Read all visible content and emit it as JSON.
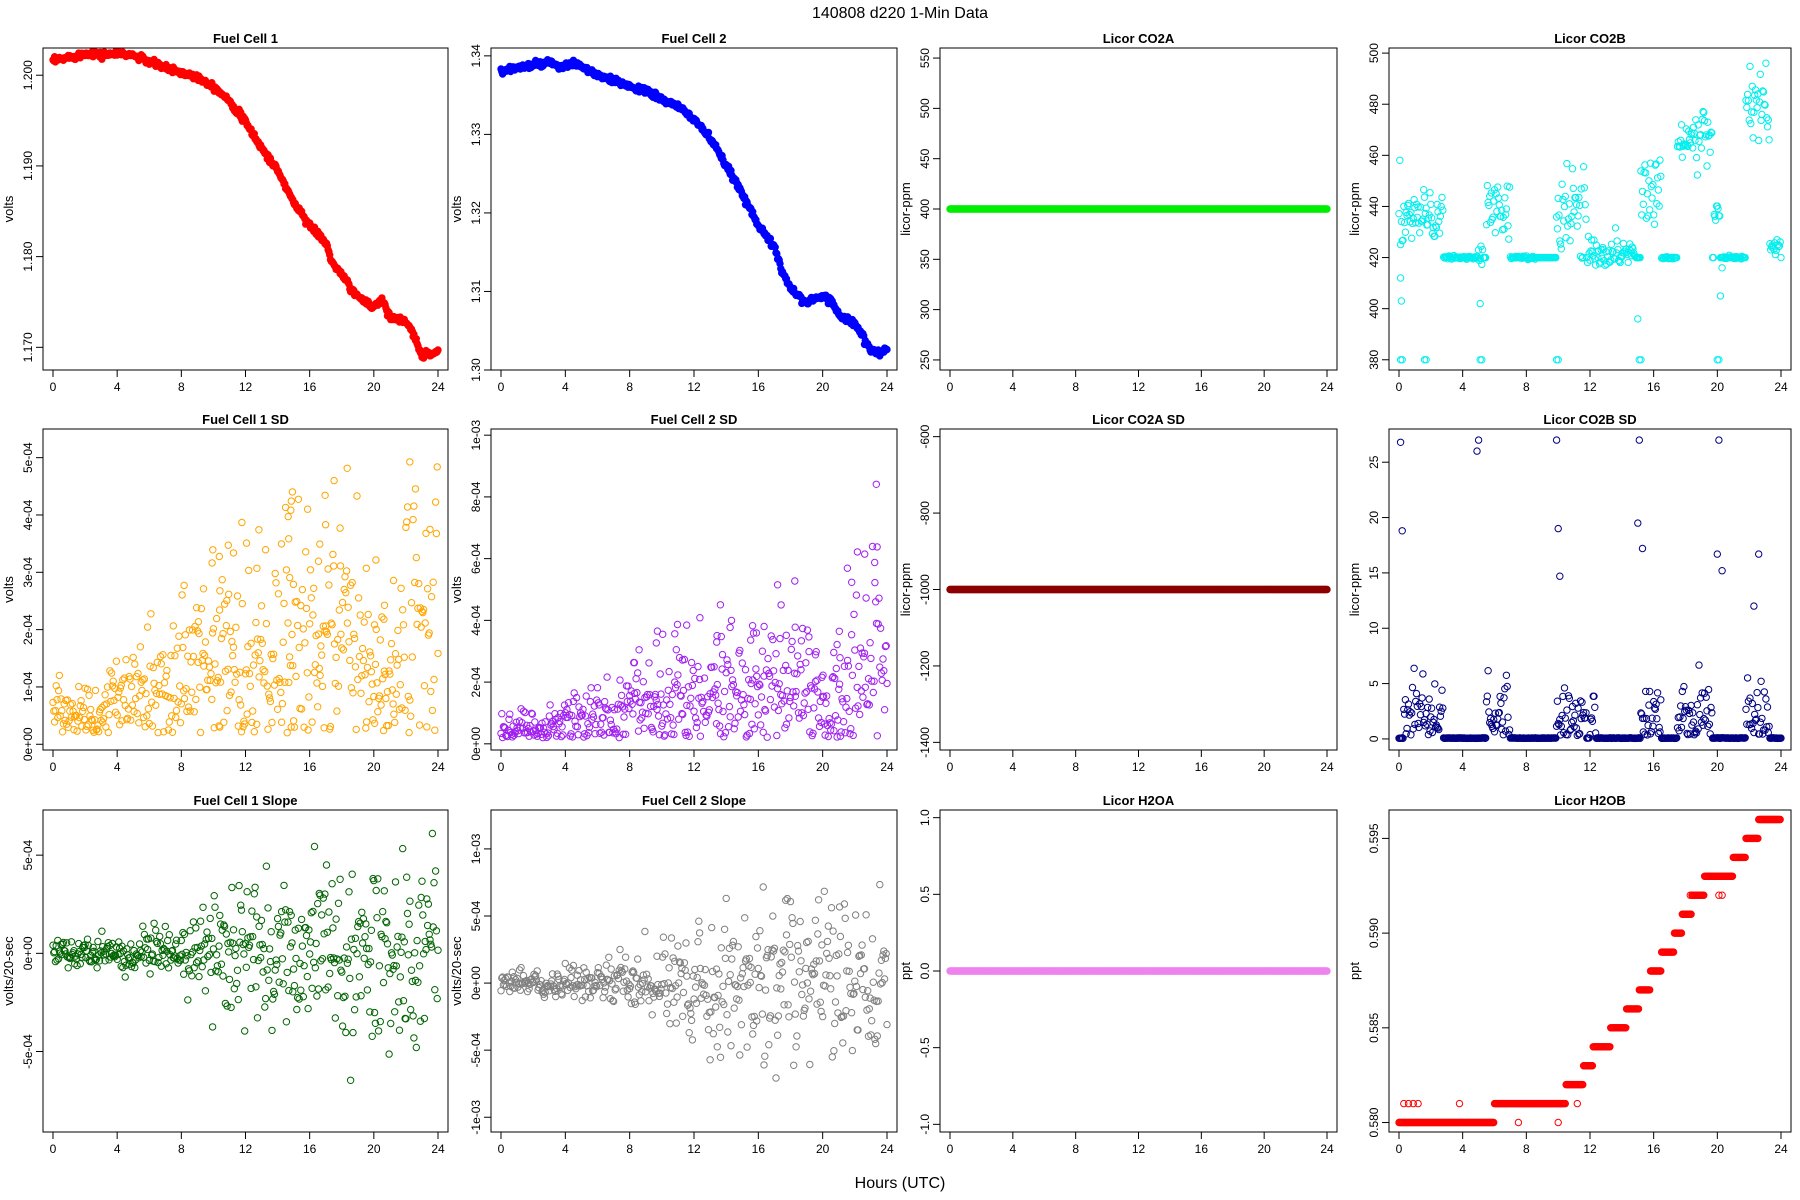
{
  "figure": {
    "title": "140808   d220   1-Min Data",
    "xlabel": "Hours (UTC)"
  },
  "chart_data": [
    {
      "id": "fc1",
      "type": "scatter",
      "title": "Fuel Cell 1",
      "ylabel": "volts",
      "color": "#ff0000",
      "filled": true,
      "xlim": [
        0,
        24
      ],
      "xticks": [
        0,
        4,
        8,
        12,
        16,
        20,
        24
      ],
      "ylim": [
        1.1675,
        1.203
      ],
      "yticks": [
        1.17,
        1.18,
        1.19,
        1.2
      ],
      "ytick_labels": [
        "1.170",
        "1.180",
        "1.190",
        "1.200"
      ],
      "gen": {
        "kind": "curve",
        "noise": 0.00035,
        "curve": [
          [
            0,
            1.2015
          ],
          [
            1,
            1.202
          ],
          [
            2.5,
            1.2025
          ],
          [
            3,
            1.2022
          ],
          [
            4,
            1.2024
          ],
          [
            5,
            1.2022
          ],
          [
            6,
            1.2015
          ],
          [
            7,
            1.2008
          ],
          [
            8,
            1.2003
          ],
          [
            9,
            1.1998
          ],
          [
            10,
            1.1988
          ],
          [
            11,
            1.1972
          ],
          [
            12,
            1.1948
          ],
          [
            13,
            1.192
          ],
          [
            14,
            1.1895
          ],
          [
            15,
            1.186
          ],
          [
            16,
            1.1835
          ],
          [
            17,
            1.1815
          ],
          [
            17.5,
            1.179
          ],
          [
            18,
            1.178
          ],
          [
            19,
            1.1755
          ],
          [
            20,
            1.1745
          ],
          [
            20.5,
            1.1752
          ],
          [
            21,
            1.1735
          ],
          [
            22,
            1.1728
          ],
          [
            22.5,
            1.1712
          ],
          [
            23,
            1.1692
          ],
          [
            24,
            1.1695
          ]
        ]
      }
    },
    {
      "id": "fc2",
      "type": "scatter",
      "title": "Fuel Cell 2",
      "ylabel": "volts",
      "color": "#0000ff",
      "filled": true,
      "xlim": [
        0,
        24
      ],
      "xticks": [
        0,
        4,
        8,
        12,
        16,
        20,
        24
      ],
      "ylim": [
        1.3,
        1.341
      ],
      "yticks": [
        1.3,
        1.31,
        1.32,
        1.33,
        1.34
      ],
      "ytick_labels": [
        "1.30",
        "1.31",
        "1.32",
        "1.33",
        "1.34"
      ],
      "gen": {
        "kind": "curve",
        "noise": 0.0004,
        "curve": [
          [
            0,
            1.338
          ],
          [
            1,
            1.3385
          ],
          [
            2,
            1.3388
          ],
          [
            3,
            1.3392
          ],
          [
            3.5,
            1.3385
          ],
          [
            4.5,
            1.339
          ],
          [
            5,
            1.3387
          ],
          [
            6,
            1.3375
          ],
          [
            7,
            1.3368
          ],
          [
            8,
            1.3362
          ],
          [
            9,
            1.3355
          ],
          [
            10,
            1.3345
          ],
          [
            11,
            1.3335
          ],
          [
            12,
            1.332
          ],
          [
            13,
            1.3295
          ],
          [
            14,
            1.326
          ],
          [
            15,
            1.3225
          ],
          [
            16,
            1.3185
          ],
          [
            17,
            1.3155
          ],
          [
            17.5,
            1.3125
          ],
          [
            18,
            1.3105
          ],
          [
            19,
            1.3085
          ],
          [
            20,
            1.3095
          ],
          [
            20.5,
            1.309
          ],
          [
            21,
            1.307
          ],
          [
            22,
            1.306
          ],
          [
            23,
            1.3025
          ],
          [
            23.5,
            1.302
          ],
          [
            24,
            1.3028
          ]
        ]
      }
    },
    {
      "id": "co2a",
      "type": "scatter",
      "title": "Licor CO2A",
      "ylabel": "licor-ppm",
      "color": "#00ee00",
      "filled": true,
      "xlim": [
        0,
        24
      ],
      "xticks": [
        0,
        4,
        8,
        12,
        16,
        20,
        24
      ],
      "ylim": [
        240,
        560
      ],
      "yticks": [
        250,
        300,
        350,
        400,
        450,
        500,
        550
      ],
      "ytick_labels": [
        "250",
        "300",
        "350",
        "400",
        "450",
        "500",
        "550"
      ],
      "gen": {
        "kind": "const",
        "value": 400
      }
    },
    {
      "id": "co2b",
      "type": "scatter",
      "title": "Licor CO2B",
      "ylabel": "licor-ppm",
      "color": "#00eeee",
      "filled": false,
      "xlim": [
        0,
        24
      ],
      "xticks": [
        0,
        4,
        8,
        12,
        16,
        20,
        24
      ],
      "ylim": [
        376,
        502
      ],
      "yticks": [
        380,
        400,
        420,
        440,
        460,
        480,
        500
      ],
      "ytick_labels": [
        "380",
        "400",
        "420",
        "440",
        "460",
        "480",
        "500"
      ],
      "gen": {
        "kind": "segments",
        "baseline": 420,
        "segments": [
          [
            0,
            0.3,
            438,
            8
          ],
          [
            0.3,
            2.8,
            436,
            5
          ],
          [
            2.8,
            5,
            420,
            0.3
          ],
          [
            5,
            5.3,
            420,
            3
          ],
          [
            5.5,
            7,
            440,
            6
          ],
          [
            7,
            8.6,
            420,
            0.3
          ],
          [
            9.9,
            11.8,
            438,
            9
          ],
          [
            11.8,
            14.9,
            422,
            3
          ],
          [
            15.2,
            16.5,
            447,
            7
          ],
          [
            16.5,
            17.3,
            420,
            0.3
          ],
          [
            17.5,
            19.7,
            466,
            6
          ],
          [
            19.8,
            20.2,
            438,
            2
          ],
          [
            20.3,
            21.7,
            420,
            0.3
          ],
          [
            21.8,
            23.3,
            478,
            10
          ],
          [
            23.3,
            24,
            424,
            1.5
          ]
        ]
      }
    },
    {
      "id": "fc1sd",
      "type": "scatter",
      "title": "Fuel Cell 1 SD",
      "ylabel": "volts",
      "color": "#ffa500",
      "filled": false,
      "xlim": [
        0,
        24
      ],
      "xticks": [
        0,
        4,
        8,
        12,
        16,
        20,
        24
      ],
      "ylim": [
        -1e-05,
        0.00055
      ],
      "yticks": [
        0,
        0.0001,
        0.0002,
        0.0003,
        0.0004,
        0.0005
      ],
      "ytick_labels": [
        "0e+00",
        "1e-04",
        "2e-04",
        "3e-04",
        "4e-04",
        "5e-04"
      ],
      "gen": {
        "kind": "sd",
        "min": 2e-05,
        "mean": [
          [
            0,
            5e-05
          ],
          [
            3,
            5e-05
          ],
          [
            4,
            8e-05
          ],
          [
            8,
            0.00011
          ],
          [
            12,
            0.00014
          ],
          [
            16,
            0.00016
          ],
          [
            19,
            0.00018
          ],
          [
            20,
            0.00011
          ],
          [
            21,
            9e-05
          ],
          [
            22,
            0.0002
          ],
          [
            24,
            0.00025
          ]
        ],
        "spread": 0.6
      }
    },
    {
      "id": "fc2sd",
      "type": "scatter",
      "title": "Fuel Cell 2 SD",
      "ylabel": "volts",
      "color": "#a020f0",
      "filled": false,
      "xlim": [
        0,
        24
      ],
      "xticks": [
        0,
        4,
        8,
        12,
        16,
        20,
        24
      ],
      "ylim": [
        -2e-05,
        0.00102
      ],
      "yticks": [
        0,
        0.0002,
        0.0004,
        0.0006,
        0.0008,
        0.001
      ],
      "ytick_labels": [
        "0e+00",
        "2e-04",
        "4e-04",
        "6e-04",
        "8e-04",
        "1e-03"
      ],
      "gen": {
        "kind": "sd",
        "min": 2e-05,
        "mean": [
          [
            0,
            5e-05
          ],
          [
            3,
            5e-05
          ],
          [
            4,
            8e-05
          ],
          [
            8,
            0.00011
          ],
          [
            12,
            0.00014
          ],
          [
            16,
            0.00017
          ],
          [
            19,
            0.00018
          ],
          [
            20,
            0.00012
          ],
          [
            21,
            0.00012
          ],
          [
            22,
            0.00025
          ],
          [
            24,
            0.0003
          ]
        ],
        "spread": 0.55
      }
    },
    {
      "id": "co2asd",
      "type": "scatter",
      "title": "Licor CO2A SD",
      "ylabel": "licor-ppm",
      "color": "#8b0000",
      "filled": true,
      "xlim": [
        0,
        24
      ],
      "xticks": [
        0,
        4,
        8,
        12,
        16,
        20,
        24
      ],
      "ylim": [
        -1420,
        -580
      ],
      "yticks": [
        -1400,
        -1200,
        -1000,
        -800,
        -600
      ],
      "ytick_labels": [
        "-1400",
        "-1200",
        "-1000",
        "-800",
        "-600"
      ],
      "gen": {
        "kind": "const",
        "value": -1000
      }
    },
    {
      "id": "co2bsd",
      "type": "scatter",
      "title": "Licor CO2B SD",
      "ylabel": "licor-ppm",
      "color": "#000080",
      "filled": false,
      "xlim": [
        0,
        24
      ],
      "xticks": [
        0,
        4,
        8,
        12,
        16,
        20,
        24
      ],
      "ylim": [
        -1,
        28
      ],
      "yticks": [
        0,
        5,
        10,
        15,
        20,
        25
      ],
      "ytick_labels": [
        "0",
        "5",
        "10",
        "15",
        "20",
        "25"
      ],
      "gen": {
        "kind": "gated",
        "active": [
          [
            0.3,
            2.8
          ],
          [
            5.5,
            7
          ],
          [
            9.9,
            11.8
          ],
          [
            12,
            12.4
          ],
          [
            15.2,
            16.5
          ],
          [
            17.5,
            19.7
          ],
          [
            21.8,
            23.3
          ]
        ],
        "spikes": [
          [
            0.1,
            26.8
          ],
          [
            0.2,
            18.8
          ],
          [
            4.9,
            26
          ],
          [
            5,
            27
          ],
          [
            9.9,
            27
          ],
          [
            10,
            19
          ],
          [
            10.1,
            14.7
          ],
          [
            15.1,
            27
          ],
          [
            15,
            19.5
          ],
          [
            15.3,
            17.2
          ],
          [
            20.1,
            27
          ],
          [
            20,
            16.7
          ],
          [
            20.3,
            15.2
          ],
          [
            22.6,
            16.7
          ],
          [
            22.3,
            12
          ]
        ]
      }
    },
    {
      "id": "fc1slope",
      "type": "scatter",
      "title": "Fuel Cell 1 Slope",
      "ylabel": "volts/20-sec",
      "color": "#006400",
      "filled": false,
      "xlim": [
        0,
        24
      ],
      "xticks": [
        0,
        4,
        8,
        12,
        16,
        20,
        24
      ],
      "ylim": [
        -0.00091,
        0.00073
      ],
      "yticks": [
        -0.0005,
        0,
        0.0005
      ],
      "ytick_labels": [
        "-5e-04",
        "0e+00",
        "5e-04"
      ],
      "gen": {
        "kind": "slope",
        "mean": 0,
        "sigma": [
          [
            0,
            3e-05
          ],
          [
            4,
            4e-05
          ],
          [
            8,
            7e-05
          ],
          [
            12,
            0.00017
          ],
          [
            16,
            0.00022
          ],
          [
            20,
            0.00024
          ],
          [
            24,
            0.00026
          ]
        ]
      }
    },
    {
      "id": "fc2slope",
      "type": "scatter",
      "title": "Fuel Cell 2 Slope",
      "ylabel": "volts/20-sec",
      "color": "#808080",
      "filled": false,
      "xlim": [
        0,
        24
      ],
      "xticks": [
        0,
        4,
        8,
        12,
        16,
        20,
        24
      ],
      "ylim": [
        -0.00111,
        0.00129
      ],
      "yticks": [
        -0.001,
        -0.0005,
        0,
        0.0005,
        0.001
      ],
      "ytick_labels": [
        "-1e-03",
        "-5e-04",
        "0e+00",
        "5e-04",
        "1e-03"
      ],
      "gen": {
        "kind": "slope",
        "mean": 0,
        "sigma": [
          [
            0,
            4e-05
          ],
          [
            4,
            5e-05
          ],
          [
            8,
            8e-05
          ],
          [
            12,
            0.0002
          ],
          [
            16,
            0.00028
          ],
          [
            20,
            0.00032
          ],
          [
            24,
            0.00036
          ]
        ]
      }
    },
    {
      "id": "h2oa",
      "type": "scatter",
      "title": "Licor H2OA",
      "ylabel": "ppt",
      "color": "#ee82ee",
      "filled": true,
      "xlim": [
        0,
        24
      ],
      "xticks": [
        0,
        4,
        8,
        12,
        16,
        20,
        24
      ],
      "ylim": [
        -1.05,
        1.05
      ],
      "yticks": [
        -1,
        -0.5,
        0,
        0.5,
        1
      ],
      "ytick_labels": [
        "-1.0",
        "-0.5",
        "0.0",
        "0.5",
        "1.0"
      ],
      "gen": {
        "kind": "const",
        "value": 0
      }
    },
    {
      "id": "h2ob",
      "type": "scatter",
      "title": "Licor H2OB",
      "ylabel": "ppt",
      "color": "#ff0000",
      "filled": false,
      "xlim": [
        0,
        24
      ],
      "xticks": [
        0,
        4,
        8,
        12,
        16,
        20,
        24
      ],
      "ylim": [
        0.5795,
        0.5965
      ],
      "yticks": [
        0.58,
        0.585,
        0.59,
        0.595
      ],
      "ytick_labels": [
        "0.580",
        "0.585",
        "0.590",
        "0.595"
      ],
      "gen": {
        "kind": "steps",
        "steps": [
          [
            0,
            6,
            0.58
          ],
          [
            6,
            10.5,
            0.581
          ],
          [
            10.5,
            11.6,
            0.582
          ],
          [
            11.6,
            12.2,
            0.583
          ],
          [
            12.2,
            13.3,
            0.584
          ],
          [
            13.3,
            14.3,
            0.585
          ],
          [
            14.3,
            15.1,
            0.586
          ],
          [
            15.1,
            15.8,
            0.587
          ],
          [
            15.8,
            16.5,
            0.588
          ],
          [
            16.5,
            17.3,
            0.589
          ],
          [
            17.3,
            17.8,
            0.59
          ],
          [
            17.8,
            18.4,
            0.591
          ],
          [
            18.4,
            19.2,
            0.592
          ],
          [
            19.2,
            21,
            0.593
          ],
          [
            21,
            21.8,
            0.594
          ],
          [
            21.8,
            22.6,
            0.595
          ],
          [
            22.6,
            24,
            0.596
          ]
        ],
        "extras": [
          [
            0.3,
            0.581
          ],
          [
            0.6,
            0.581
          ],
          [
            0.9,
            0.581
          ],
          [
            1.2,
            0.581
          ],
          [
            3.8,
            0.581
          ],
          [
            7.5,
            0.58
          ],
          [
            10,
            0.58
          ],
          [
            11.2,
            0.581
          ],
          [
            18.3,
            0.592
          ],
          [
            20.1,
            0.592
          ],
          [
            20.3,
            0.592
          ]
        ]
      }
    }
  ]
}
